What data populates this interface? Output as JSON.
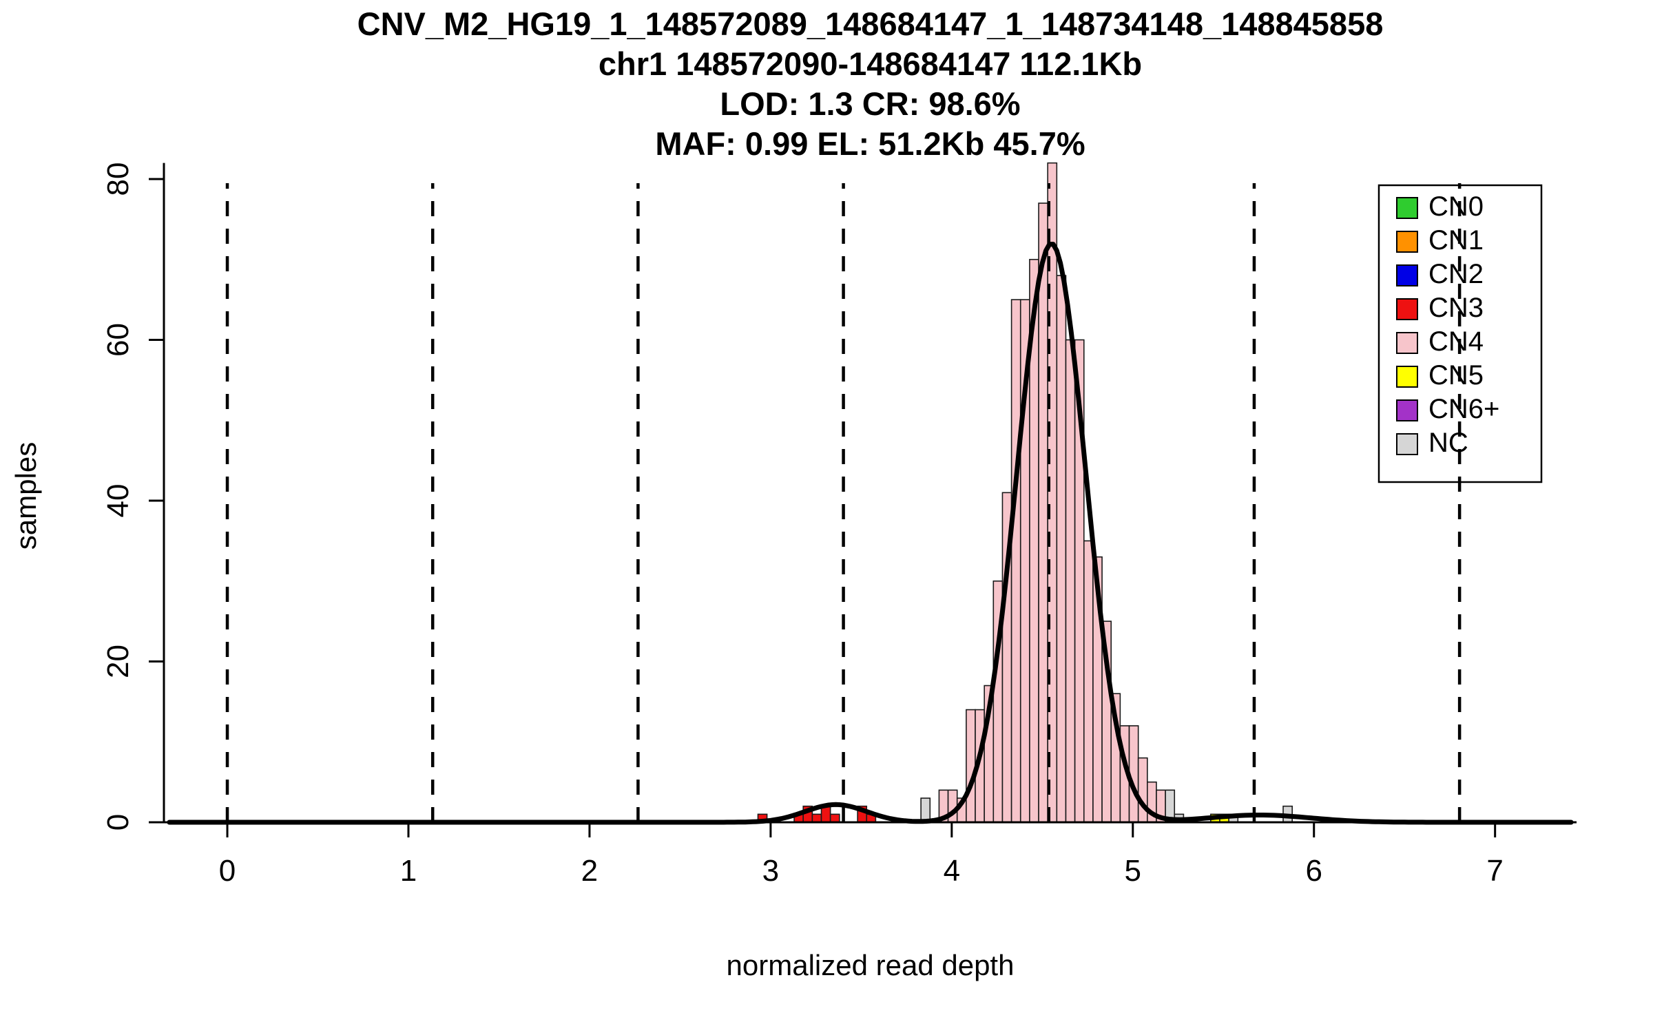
{
  "chart_data": {
    "type": "histogram",
    "title_lines": [
      "CNV_M2_HG19_1_148572089_148684147_1_148734148_148845858",
      "chr1 148572090-148684147 112.1Kb",
      "LOD: 1.3 CR: 98.6%",
      "MAF: 0.99 EL: 51.2Kb 45.7%"
    ],
    "xlabel": "normalized read depth",
    "ylabel": "samples",
    "xlim": [
      -0.35,
      7.45
    ],
    "ylim": [
      0,
      82
    ],
    "xticks": [
      0,
      1,
      2,
      3,
      4,
      5,
      6,
      7
    ],
    "yticks": [
      0,
      20,
      40,
      60,
      80
    ],
    "bin_width": 0.05,
    "dashed_lines_x": [
      0,
      1.134,
      2.268,
      3.402,
      4.536,
      5.67,
      6.804
    ],
    "bars": [
      {
        "x": 2.93,
        "h": 1,
        "cn": "CN3"
      },
      {
        "x": 3.13,
        "h": 1,
        "cn": "CN3"
      },
      {
        "x": 3.18,
        "h": 2,
        "cn": "CN3"
      },
      {
        "x": 3.23,
        "h": 1,
        "cn": "CN3"
      },
      {
        "x": 3.28,
        "h": 2,
        "cn": "CN3"
      },
      {
        "x": 3.33,
        "h": 1,
        "cn": "CN3"
      },
      {
        "x": 3.48,
        "h": 2,
        "cn": "CN3"
      },
      {
        "x": 3.53,
        "h": 1,
        "cn": "CN3"
      },
      {
        "x": 3.83,
        "h": 3,
        "cn": "NC"
      },
      {
        "x": 3.93,
        "h": 4,
        "cn": "CN4"
      },
      {
        "x": 3.98,
        "h": 4,
        "cn": "CN4"
      },
      {
        "x": 4.03,
        "h": 3,
        "cn": "CN4"
      },
      {
        "x": 4.08,
        "h": 14,
        "cn": "CN4"
      },
      {
        "x": 4.13,
        "h": 14,
        "cn": "CN4"
      },
      {
        "x": 4.18,
        "h": 17,
        "cn": "CN4"
      },
      {
        "x": 4.23,
        "h": 30,
        "cn": "CN4"
      },
      {
        "x": 4.28,
        "h": 41,
        "cn": "CN4"
      },
      {
        "x": 4.33,
        "h": 65,
        "cn": "CN4"
      },
      {
        "x": 4.38,
        "h": 65,
        "cn": "CN4"
      },
      {
        "x": 4.43,
        "h": 70,
        "cn": "CN4"
      },
      {
        "x": 4.48,
        "h": 77,
        "cn": "CN4"
      },
      {
        "x": 4.53,
        "h": 82,
        "cn": "CN4"
      },
      {
        "x": 4.58,
        "h": 68,
        "cn": "CN4"
      },
      {
        "x": 4.63,
        "h": 60,
        "cn": "CN4"
      },
      {
        "x": 4.68,
        "h": 60,
        "cn": "CN4"
      },
      {
        "x": 4.73,
        "h": 35,
        "cn": "CN4"
      },
      {
        "x": 4.78,
        "h": 33,
        "cn": "CN4"
      },
      {
        "x": 4.83,
        "h": 25,
        "cn": "CN4"
      },
      {
        "x": 4.88,
        "h": 16,
        "cn": "CN4"
      },
      {
        "x": 4.93,
        "h": 12,
        "cn": "CN4"
      },
      {
        "x": 4.98,
        "h": 12,
        "cn": "CN4"
      },
      {
        "x": 5.03,
        "h": 8,
        "cn": "CN4"
      },
      {
        "x": 5.08,
        "h": 5,
        "cn": "CN4"
      },
      {
        "x": 5.13,
        "h": 4,
        "cn": "CN4"
      },
      {
        "x": 5.18,
        "h": 4,
        "cn": "NC"
      },
      {
        "x": 5.23,
        "h": 1,
        "cn": "NC"
      },
      {
        "x": 5.43,
        "h": 1,
        "cn": "CN5"
      },
      {
        "x": 5.48,
        "h": 1,
        "cn": "CN5"
      },
      {
        "x": 5.53,
        "h": 1,
        "cn": "NC"
      },
      {
        "x": 5.83,
        "h": 2,
        "cn": "NC"
      }
    ],
    "curve_components": [
      {
        "mean": 4.55,
        "sd": 0.19,
        "amp": 72
      },
      {
        "mean": 3.36,
        "sd": 0.17,
        "amp": 2.2
      },
      {
        "mean": 5.7,
        "sd": 0.28,
        "amp": 0.9
      }
    ],
    "colors": {
      "CN0": "#2fcc2f",
      "CN1": "#ff9100",
      "CN2": "#0000e6",
      "CN3": "#ee1111",
      "CN4": "#f7c5cb",
      "CN5": "#ffff00",
      "CN6+": "#a332c8",
      "NC": "#d6d6d6"
    },
    "legend": {
      "items": [
        {
          "label": "CN0",
          "cn": "CN0"
        },
        {
          "label": "CN1",
          "cn": "CN1"
        },
        {
          "label": "CN2",
          "cn": "CN2"
        },
        {
          "label": "CN3",
          "cn": "CN3"
        },
        {
          "label": "CN4",
          "cn": "CN4"
        },
        {
          "label": "CN5",
          "cn": "CN5"
        },
        {
          "label": "CN6+",
          "cn": "CN6+"
        },
        {
          "label": "NC",
          "cn": "NC"
        }
      ]
    }
  }
}
